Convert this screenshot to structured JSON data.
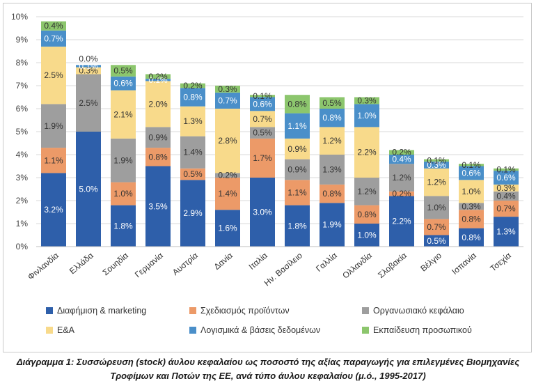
{
  "chart_data": {
    "type": "bar",
    "stacked": true,
    "title": "",
    "xlabel": "",
    "ylabel": "",
    "ylim": [
      0,
      10
    ],
    "y_ticks": [
      "0%",
      "1%",
      "2%",
      "3%",
      "4%",
      "5%",
      "6%",
      "7%",
      "8%",
      "9%",
      "10%"
    ],
    "grid": true,
    "legend_position": "bottom",
    "categories": [
      "Φινλανδία",
      "Ελλάδα",
      "Σουηδία",
      "Γερμανία",
      "Αυστρία",
      "Δανία",
      "Ιταλία",
      "Ην. Βασίλειο",
      "Γαλλία",
      "Ολλανδία",
      "Σλοβακία",
      "Βέλγιο",
      "Ισπανία",
      "Τσεχία"
    ],
    "series": [
      {
        "name": "Διαφήμιση & marketing",
        "color": "#2e5faa",
        "label_color": "#ffffff",
        "values": [
          3.2,
          5.0,
          1.8,
          3.5,
          2.9,
          1.6,
          3.0,
          1.8,
          1.9,
          1.0,
          2.2,
          0.5,
          0.8,
          1.3
        ],
        "labels": [
          "3.2%",
          "5.0%",
          "1.8%",
          "3.5%",
          "2.9%",
          "1.6%",
          "3.0%",
          "1.8%",
          "1.9%",
          "1.0%",
          "2.2%",
          "0.5%",
          "0.8%",
          "1.3%"
        ]
      },
      {
        "name": "Σχεδιασμός προϊόντων",
        "color": "#ec9a68",
        "label_color": "#333333",
        "values": [
          1.1,
          0.0,
          1.0,
          0.8,
          0.5,
          1.4,
          1.7,
          1.1,
          0.8,
          0.8,
          0.2,
          0.7,
          0.8,
          0.7
        ],
        "labels": [
          "1.1%",
          "",
          "1.0%",
          "0.8%",
          "0.5%",
          "1.4%",
          "1.7%",
          "1.1%",
          "0.8%",
          "0.8%",
          "0.2%",
          "0.7%",
          "0.8%",
          "0.7%"
        ]
      },
      {
        "name": "Οργανωσιακό κεφάλαιο",
        "color": "#9e9e9e",
        "label_color": "#333333",
        "values": [
          1.9,
          2.5,
          1.9,
          0.9,
          1.4,
          0.2,
          0.5,
          0.9,
          1.3,
          1.2,
          1.2,
          1.0,
          0.3,
          0.4
        ],
        "labels": [
          "1.9%",
          "2.5%",
          "1.9%",
          "0.9%",
          "1.4%",
          "0.2%",
          "0.5%",
          "0.9%",
          "1.3%",
          "1.2%",
          "1.2%",
          "1.0%",
          "0.3%",
          "0.4%"
        ]
      },
      {
        "name": "Ε&Α",
        "color": "#f8da8b",
        "label_color": "#333333",
        "values": [
          2.5,
          0.3,
          2.1,
          2.0,
          1.3,
          2.8,
          0.7,
          0.9,
          1.2,
          2.2,
          0.0,
          1.2,
          1.0,
          0.3
        ],
        "labels": [
          "2.5%",
          "0.3%",
          "2.1%",
          "2.0%",
          "1.3%",
          "2.8%",
          "0.7%",
          "0.9%",
          "1.2%",
          "2.2%",
          "",
          "1.2%",
          "1.0%",
          "0.3%"
        ]
      },
      {
        "name": "Λογισμικά & βάσεις δεδομένων",
        "color": "#4a8fc9",
        "label_color": "#ffffff",
        "values": [
          0.7,
          0.1,
          0.6,
          0.1,
          0.8,
          0.7,
          0.6,
          1.1,
          0.8,
          1.0,
          0.4,
          0.3,
          0.6,
          0.6
        ],
        "labels": [
          "0.7%",
          "0.1%",
          "0.6%",
          "0.1%",
          "0.8%",
          "0.7%",
          "0.6%",
          "1.1%",
          "0.8%",
          "1.0%",
          "0.4%",
          "0.3%",
          "0.6%",
          "0.6%"
        ]
      },
      {
        "name": "Εκπαίδευση προσωπικού",
        "color": "#8cc66d",
        "label_color": "#333333",
        "values": [
          0.4,
          0.0,
          0.5,
          0.2,
          0.2,
          0.3,
          0.1,
          0.8,
          0.5,
          0.3,
          0.2,
          0.1,
          0.1,
          0.1
        ],
        "labels": [
          "0.4%",
          "0.0%",
          "0.5%",
          "0.2%",
          "0.2%",
          "0.3%",
          "0.1%",
          "0.8%",
          "0.5%",
          "0.3%",
          "0.2%",
          "0.1%",
          "0.1%",
          "0.1%"
        ]
      }
    ]
  },
  "caption": {
    "line1": "Διάγραμμα 1: Συσσώρευση (stock) άυλου κεφαλαίου ως ποσοστό της αξίας παραγωγής για επιλεγμένες Βιομηχανίες",
    "line2": "Τροφίμων και Ποτών της ΕΕ, ανά τύπο άυλου κεφαλαίου (μ.ό., 1995-2017)"
  }
}
